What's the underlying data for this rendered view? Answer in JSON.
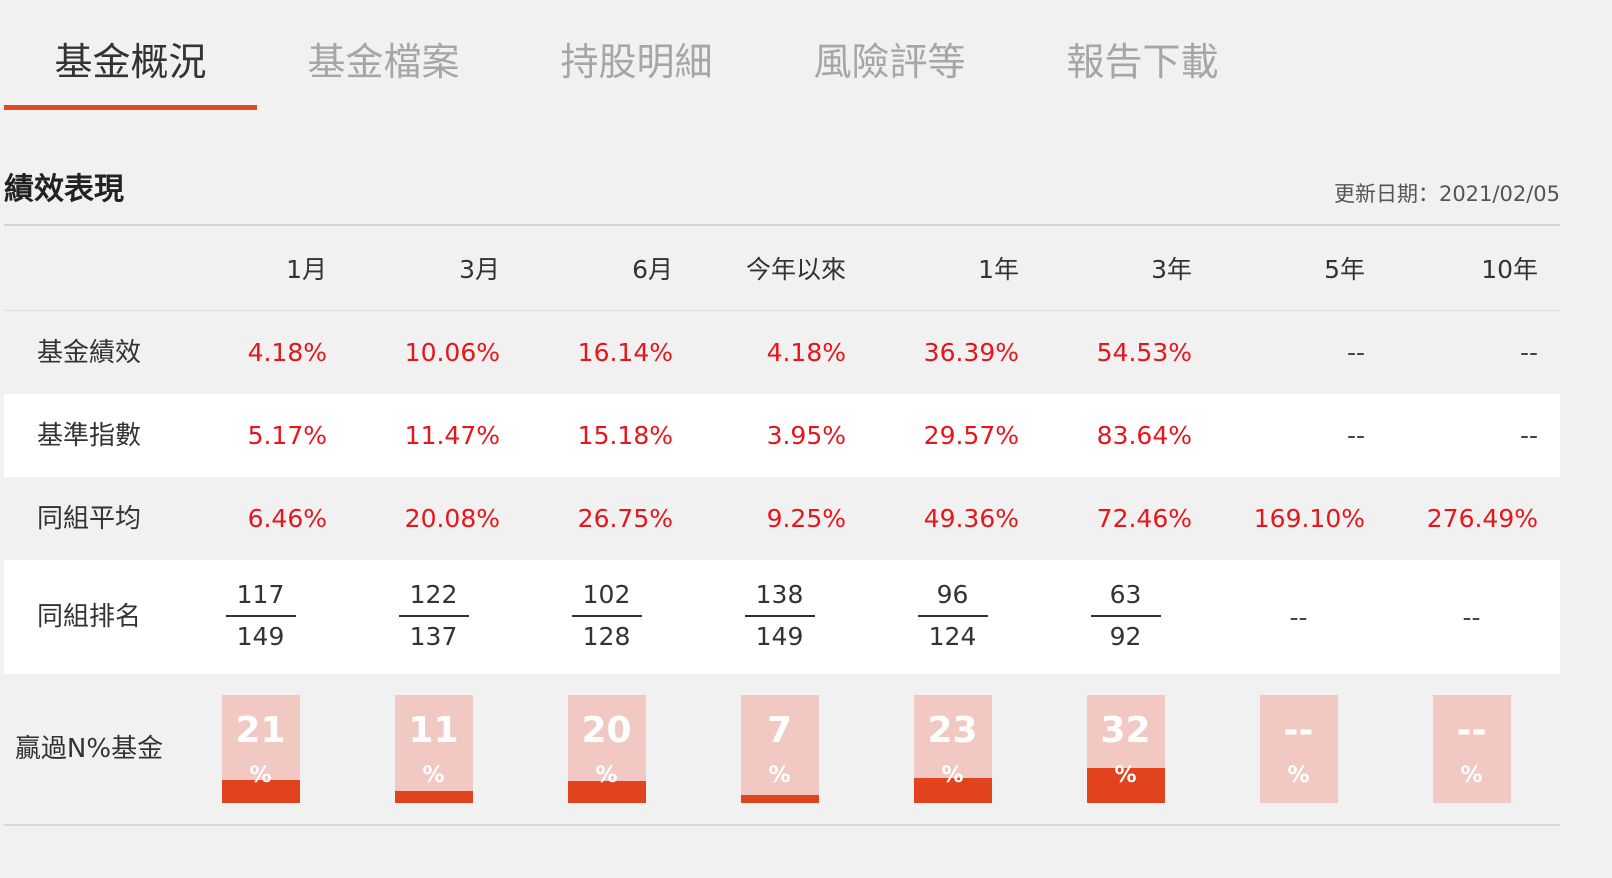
{
  "tabs": [
    {
      "label": "基金概況",
      "active": true
    },
    {
      "label": "基金檔案",
      "active": false
    },
    {
      "label": "持股明細",
      "active": false
    },
    {
      "label": "風險評等",
      "active": false
    },
    {
      "label": "報告下載",
      "active": false
    }
  ],
  "section": {
    "title": "績效表現",
    "update_date": "更新日期：2021/02/05"
  },
  "columns": [
    "1月",
    "3月",
    "6月",
    "今年以來",
    "1年",
    "3年",
    "5年",
    "10年"
  ],
  "rows": {
    "fund": {
      "label": "基金績效",
      "values": [
        "4.18%",
        "10.06%",
        "16.14%",
        "4.18%",
        "36.39%",
        "54.53%",
        "--",
        "--"
      ]
    },
    "benchmark": {
      "label": "基準指數",
      "values": [
        "5.17%",
        "11.47%",
        "15.18%",
        "3.95%",
        "29.57%",
        "83.64%",
        "--",
        "--"
      ]
    },
    "peer_avg": {
      "label": "同組平均",
      "values": [
        "6.46%",
        "20.08%",
        "26.75%",
        "9.25%",
        "49.36%",
        "72.46%",
        "169.10%",
        "276.49%"
      ]
    },
    "peer_rank": {
      "label": "同組排名",
      "values": [
        {
          "rank": "117",
          "total": "149"
        },
        {
          "rank": "122",
          "total": "137"
        },
        {
          "rank": "102",
          "total": "128"
        },
        {
          "rank": "138",
          "total": "149"
        },
        {
          "rank": "96",
          "total": "124"
        },
        {
          "rank": "63",
          "total": "92"
        },
        {
          "text": "--"
        },
        {
          "text": "--"
        }
      ]
    },
    "beat_pct": {
      "label_line1": "贏過N%",
      "label_line2": "基金",
      "unit": "%",
      "values": [
        {
          "text": "21",
          "percent": 21
        },
        {
          "text": "11",
          "percent": 11
        },
        {
          "text": "20",
          "percent": 20
        },
        {
          "text": "7",
          "percent": 7
        },
        {
          "text": "23",
          "percent": 23
        },
        {
          "text": "32",
          "percent": 32
        },
        {
          "text": "--",
          "percent": 0
        },
        {
          "text": "--",
          "percent": 0
        }
      ]
    }
  },
  "colors": {
    "accent": "#dc4a26",
    "positive_text": "#e8151b",
    "bar_bg": "#f2c8c2",
    "bar_fill": "#e0431e"
  }
}
